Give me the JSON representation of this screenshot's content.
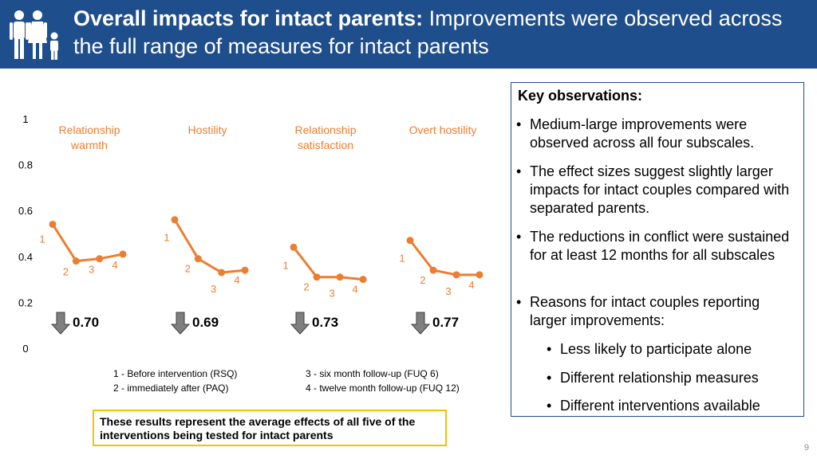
{
  "header": {
    "title_bold": "Overall impacts for intact parents:",
    "title_rest": " Improvements were observed across the full range of measures for intact parents",
    "icon": "family-icon"
  },
  "key_observations": {
    "heading": "Key observations:",
    "items": [
      "Medium-large improvements were observed across all four subscales.",
      "The effect sizes suggest slightly larger impacts for intact couples compared with separated parents.",
      "The reductions in conflict were sustained for at least 12 months for all subscales",
      "Reasons for intact couples reporting larger improvements:"
    ],
    "reasons": [
      "Less likely to participate alone",
      "Different relationship measures",
      "Different interventions available"
    ]
  },
  "note": "These results represent the average effects of all five of the interventions being tested for intact parents",
  "page_number": "9",
  "colors": {
    "header_bg": "#1f4e8c",
    "series": "#ed7d31",
    "note_border": "#f5c200"
  },
  "chart_data": {
    "type": "line",
    "ylim": [
      0,
      1
    ],
    "yticks": [
      "0",
      "0.2",
      "0.4",
      "0.6",
      "0.8",
      "1"
    ],
    "grid": false,
    "series": [
      {
        "name": "Relationship warmth",
        "x": [
          "1",
          "2",
          "3",
          "4"
        ],
        "values": [
          0.54,
          0.38,
          0.39,
          0.41
        ],
        "effect_size": "0.70"
      },
      {
        "name": "Hostility",
        "x": [
          "1",
          "2",
          "3",
          "4"
        ],
        "values": [
          0.56,
          0.39,
          0.33,
          0.34
        ],
        "effect_size": "0.69"
      },
      {
        "name": "Relationship satisfaction",
        "x": [
          "1",
          "2",
          "3",
          "4"
        ],
        "values": [
          0.44,
          0.31,
          0.31,
          0.3
        ],
        "effect_size": "0.73"
      },
      {
        "name": "Overt hostility",
        "x": [
          "1",
          "2",
          "3",
          "4"
        ],
        "values": [
          0.47,
          0.34,
          0.32,
          0.32
        ],
        "effect_size": "0.77"
      }
    ],
    "legend": [
      "1 - Before intervention (RSQ)",
      "2 - immediately after (PAQ)",
      "3 - six month follow-up (FUQ 6)",
      "4 - twelve month follow-up (FUQ 12)"
    ]
  }
}
